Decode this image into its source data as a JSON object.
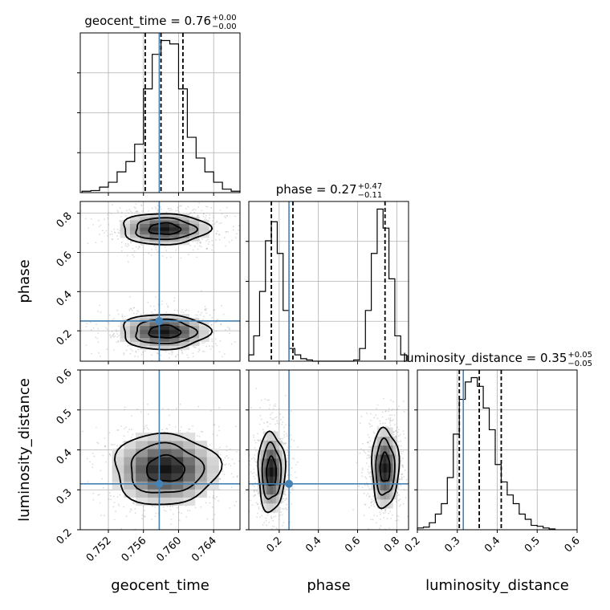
{
  "chart_data": {
    "type": "corner",
    "parameters": [
      "geocent_time",
      "phase",
      "luminosity_distance"
    ],
    "ranges": {
      "geocent_time": [
        0.7488,
        0.767
      ],
      "phase": [
        0.045,
        0.86
      ],
      "luminosity_distance": [
        0.2,
        0.6
      ]
    },
    "ticks": {
      "geocent_time": {
        "values": [
          0.752,
          0.756,
          0.76,
          0.764
        ],
        "labels": [
          "0.752",
          "0.756",
          "0.760",
          "0.764"
        ]
      },
      "phase": {
        "values": [
          0.2,
          0.4,
          0.6,
          0.8
        ],
        "labels": [
          "0.2",
          "0.4",
          "0.6",
          "0.8"
        ]
      },
      "luminosity_distance": {
        "values": [
          0.2,
          0.3,
          0.4,
          0.5,
          0.6
        ],
        "labels": [
          "0.2",
          "0.3",
          "0.4",
          "0.5",
          "0.6"
        ]
      }
    },
    "axis_labels": {
      "geocent_time": "geocent_time",
      "phase": "phase",
      "luminosity_distance": "luminosity_distance"
    },
    "titles": [
      {
        "param": "geocent_time",
        "text": "geocent_time = 0.76",
        "sup": "+0.00",
        "sub": "−0.00"
      },
      {
        "param": "phase",
        "text": "phase = 0.27",
        "sup": "+0.47",
        "sub": "−0.11"
      },
      {
        "param": "luminosity_distance",
        "text": "luminosity_distance = 0.35",
        "sup": "+0.05",
        "sub": "−0.05"
      }
    ],
    "truths": {
      "geocent_time": 0.7578,
      "phase": 0.25,
      "luminosity_distance": 0.315
    },
    "quantiles": {
      "geocent_time": [
        0.7562,
        0.758,
        0.7605
      ],
      "phase": [
        0.16,
        0.27,
        0.74
      ],
      "luminosity_distance": [
        0.305,
        0.355,
        0.41
      ]
    },
    "histograms": {
      "geocent_time": {
        "bin_edges": [
          0.749,
          0.75,
          0.751,
          0.752,
          0.753,
          0.754,
          0.755,
          0.756,
          0.757,
          0.758,
          0.759,
          0.76,
          0.761,
          0.762,
          0.763,
          0.764,
          0.765,
          0.766,
          0.767
        ],
        "counts": [
          2,
          3,
          8,
          15,
          30,
          45,
          70,
          150,
          200,
          220,
          215,
          150,
          80,
          50,
          30,
          15,
          5,
          2
        ]
      },
      "phase": {
        "bin_edges": [
          0.04,
          0.07,
          0.1,
          0.13,
          0.16,
          0.19,
          0.22,
          0.25,
          0.28,
          0.31,
          0.34,
          0.37,
          0.58,
          0.61,
          0.64,
          0.67,
          0.7,
          0.73,
          0.76,
          0.79,
          0.82,
          0.85
        ],
        "counts": [
          5,
          20,
          55,
          95,
          110,
          85,
          40,
          10,
          5,
          2,
          1,
          0,
          1,
          10,
          40,
          85,
          120,
          105,
          65,
          20,
          5
        ]
      },
      "luminosity_distance": {
        "bin_edges": [
          0.2,
          0.215,
          0.23,
          0.245,
          0.26,
          0.275,
          0.29,
          0.305,
          0.32,
          0.335,
          0.35,
          0.365,
          0.38,
          0.395,
          0.41,
          0.425,
          0.44,
          0.455,
          0.47,
          0.485,
          0.5,
          0.515,
          0.53,
          0.545
        ],
        "counts": [
          2,
          3,
          8,
          18,
          30,
          60,
          110,
          150,
          170,
          175,
          165,
          140,
          115,
          75,
          55,
          40,
          30,
          18,
          12,
          5,
          4,
          2,
          1
        ]
      }
    },
    "density_2d": [
      {
        "x": "geocent_time",
        "y": "phase",
        "modes": [
          {
            "center": [
              0.7584,
              0.72
            ],
            "sigma": [
              0.0025,
              0.04
            ],
            "corr": 0.0
          },
          {
            "center": [
              0.7584,
              0.195
            ],
            "sigma": [
              0.0025,
              0.045
            ],
            "corr": 0.0
          }
        ]
      },
      {
        "x": "geocent_time",
        "y": "luminosity_distance",
        "modes": [
          {
            "center": [
              0.7585,
              0.352
            ],
            "sigma": [
              0.003,
              0.045
            ],
            "corr": 0.0
          }
        ]
      },
      {
        "x": "phase",
        "y": "luminosity_distance",
        "modes": [
          {
            "center": [
              0.16,
              0.345
            ],
            "sigma": [
              0.035,
              0.05
            ],
            "corr": 0.0
          },
          {
            "center": [
              0.74,
              0.355
            ],
            "sigma": [
              0.035,
              0.05
            ],
            "corr": 0.0
          }
        ]
      }
    ],
    "grid": true
  },
  "colors": {
    "truth": "#4682b4",
    "grid": "#b0b0b0",
    "points": "#9a9a9a"
  }
}
